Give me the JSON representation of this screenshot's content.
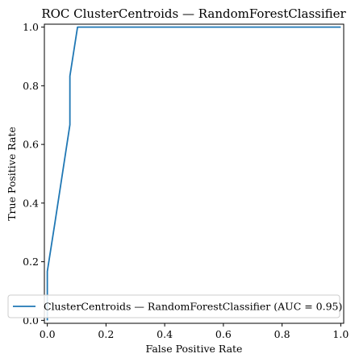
{
  "chart_data": {
    "type": "line",
    "title": "ROC ClusterCentroids — RandomForestClassifier",
    "xlabel": "False Positive Rate",
    "ylabel": "True Positive Rate",
    "xlim": [
      -0.01,
      1.01
    ],
    "ylim": [
      -0.01,
      1.01
    ],
    "xticks": [
      0.0,
      0.2,
      0.4,
      0.6,
      0.8,
      1.0
    ],
    "yticks": [
      0.0,
      0.2,
      0.4,
      0.6,
      0.8,
      1.0
    ],
    "xtick_labels": [
      "0.0",
      "0.2",
      "0.4",
      "0.6",
      "0.8",
      "1.0"
    ],
    "ytick_labels": [
      "0.0",
      "0.2",
      "0.4",
      "0.6",
      "0.8",
      "1.0"
    ],
    "grid": false,
    "legend_position": "lower-right",
    "series": [
      {
        "name": "ClusterCentroids — RandomForestClassifier (AUC = 0.95)",
        "color": "#1f77b4",
        "x": [
          0.0,
          0.0,
          0.026,
          0.077,
          0.077,
          0.103,
          0.103,
          1.0
        ],
        "y": [
          0.0,
          0.167,
          0.333,
          0.667,
          0.833,
          1.0,
          1.0,
          1.0
        ]
      }
    ]
  }
}
